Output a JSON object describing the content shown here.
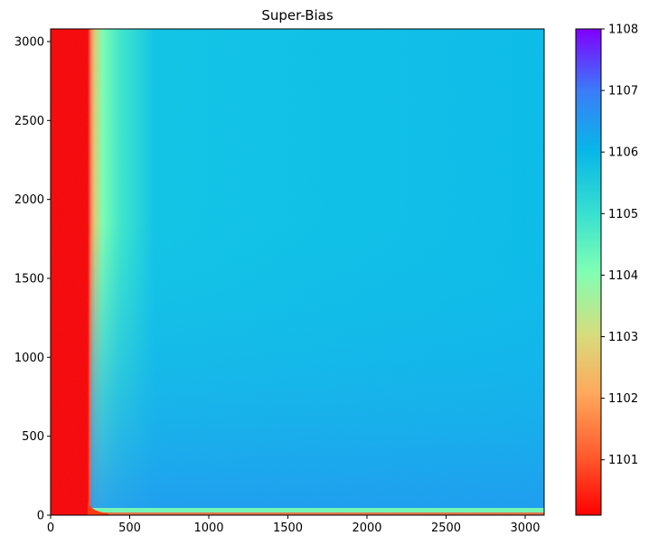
{
  "chart_data": {
    "type": "heatmap",
    "title": "Super-Bias",
    "xlabel": "",
    "ylabel": "",
    "xlim": [
      0,
      3120
    ],
    "ylim": [
      0,
      3080
    ],
    "x_ticks": [
      0,
      500,
      1000,
      1500,
      2000,
      2500,
      3000
    ],
    "y_ticks": [
      0,
      500,
      1000,
      1500,
      2000,
      2500,
      3000
    ],
    "origin": "lower",
    "colormap": "rainbow_r",
    "colorbar": {
      "vmin": 1100.1,
      "vmax": 1108.0,
      "ticks": [
        1101,
        1102,
        1103,
        1104,
        1105,
        1106,
        1107,
        1108
      ]
    },
    "description_values": {
      "left_band_x_end": 250,
      "left_band_value": 1100.1,
      "transition_x_end": 650,
      "bottom_band_y_end": 30,
      "upper_region_value": 1105.8,
      "lower_region_value": 1106.3
    }
  }
}
